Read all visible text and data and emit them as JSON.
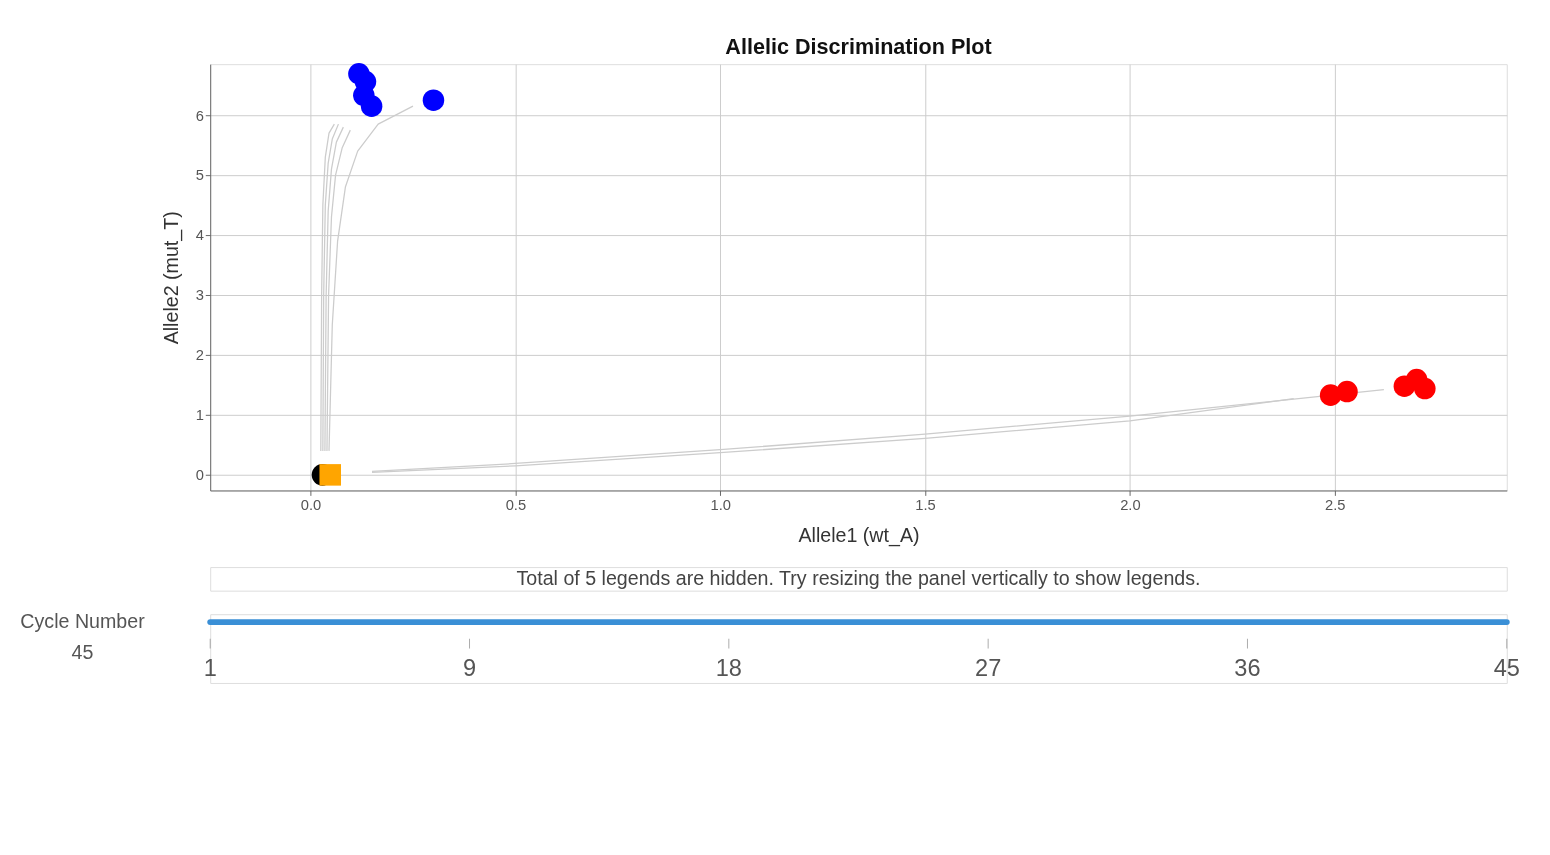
{
  "chart_data": [
    {
      "type": "scatter",
      "title": "Allelic Discrimination Plot",
      "xlabel": "Allele1 (wt_A)",
      "ylabel": "Allele2 (mut_T)",
      "xlim": [
        -0.245,
        2.92
      ],
      "ylim": [
        -0.26,
        6.85
      ],
      "xticks": [
        {
          "value": 0,
          "label": "0.0"
        },
        0.5,
        {
          "value": 1,
          "label": "1.0"
        },
        1.5,
        {
          "value": 2,
          "label": "2.0"
        },
        2.5
      ],
      "yticks": [
        0,
        1,
        2,
        3,
        4,
        5,
        6
      ],
      "grid": true,
      "annotations": [
        "Total of 5 legends are hidden. Try resizing the panel vertically to show legends.",
        "Cycle Number",
        "45",
        "1",
        "9",
        "18",
        "27",
        "36",
        "45"
      ],
      "series": [
        {
          "type": "line",
          "color": "#cccccc",
          "marker": "none",
          "x": [
            0.025,
            0.027,
            0.03,
            0.036,
            0.045,
            0.058
          ],
          "values": [
            0.4,
            3,
            4.5,
            5.3,
            5.7,
            5.85
          ]
        },
        {
          "type": "line",
          "color": "#cccccc",
          "marker": "none",
          "x": [
            0.03,
            0.032,
            0.036,
            0.043,
            0.053,
            0.068
          ],
          "values": [
            0.4,
            3,
            4.5,
            5.2,
            5.6,
            5.85
          ]
        },
        {
          "type": "line",
          "color": "#cccccc",
          "marker": "none",
          "x": [
            0.035,
            0.038,
            0.043,
            0.051,
            0.063,
            0.08
          ],
          "values": [
            0.4,
            3,
            4.4,
            5.1,
            5.55,
            5.8
          ]
        },
        {
          "type": "line",
          "color": "#cccccc",
          "marker": "none",
          "x": [
            0.04,
            0.044,
            0.051,
            0.061,
            0.077,
            0.097
          ],
          "values": [
            0.4,
            3,
            4.3,
            5.0,
            5.45,
            5.75
          ]
        },
        {
          "type": "line",
          "color": "#cccccc",
          "marker": "none",
          "x": [
            0.045,
            0.053,
            0.066,
            0.085,
            0.115,
            0.165,
            0.25
          ],
          "values": [
            0.4,
            2.5,
            3.9,
            4.8,
            5.4,
            5.85,
            6.15
          ]
        },
        {
          "type": "line",
          "color": "#cccccc",
          "marker": "none",
          "x": [
            0.15,
            0.5,
            1.0,
            1.5,
            2.0,
            2.4
          ],
          "values": [
            0.04,
            0.15,
            0.37,
            0.61,
            0.9,
            1.27
          ]
        },
        {
          "type": "line",
          "color": "#cccccc",
          "marker": "none",
          "x": [
            0.15,
            0.5,
            1.0,
            1.5,
            2.0,
            2.62
          ],
          "values": [
            0.06,
            0.19,
            0.42,
            0.68,
            0.98,
            1.42
          ]
        },
        {
          "type": "scatter",
          "color": "#0000ff",
          "marker": "circle",
          "x": [
            0.118,
            0.134,
            0.13,
            0.149,
            0.3
          ],
          "values": [
            6.69,
            6.56,
            6.33,
            6.15,
            6.25
          ]
        },
        {
          "type": "scatter",
          "color": "#ff0000",
          "marker": "circle",
          "x": [
            2.49,
            2.53,
            2.67,
            2.7,
            2.72
          ],
          "values": [
            1.33,
            1.39,
            1.48,
            1.59,
            1.44
          ]
        },
        {
          "type": "scatter",
          "color": "#000000",
          "marker": "circle",
          "x": [
            0.029
          ],
          "values": [
            0
          ]
        },
        {
          "type": "scatter",
          "color": "#ffa500",
          "marker": "square",
          "x": [
            0.048
          ],
          "values": [
            0
          ]
        }
      ]
    }
  ]
}
